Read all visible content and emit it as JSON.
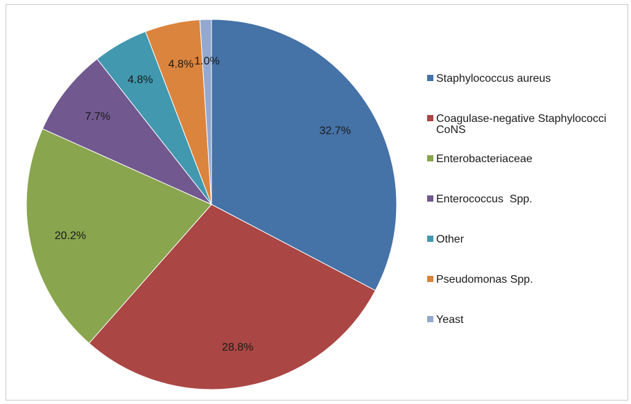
{
  "chart_data": {
    "type": "pie",
    "title": "",
    "legend_position": "right",
    "slices": [
      {
        "name": "Staphylococcus aureus",
        "value": 32.7,
        "label": "32.7%",
        "color": "#4572A7"
      },
      {
        "name": "Coagulase-negative Staphylococci CoNS",
        "name_lines": [
          "Coagulase-negative Staphylococci",
          "CoNS"
        ],
        "value": 28.8,
        "label": "28.8%",
        "color": "#AA4643"
      },
      {
        "name": "Enterobacteriaceae",
        "value": 20.2,
        "label": "20.2%",
        "color": "#89A54E"
      },
      {
        "name": "Enterococcus  Spp.",
        "value": 7.7,
        "label": "7.7%",
        "color": "#71588F"
      },
      {
        "name": "Other",
        "value": 4.8,
        "label": "4.8%",
        "color": "#4198AF"
      },
      {
        "name": "Pseudomonas Spp.",
        "value": 4.8,
        "label": "4.8%",
        "color": "#DB843D"
      },
      {
        "name": "Yeast",
        "value": 1.0,
        "label": "1.0%",
        "color": "#93A9CF"
      }
    ]
  }
}
